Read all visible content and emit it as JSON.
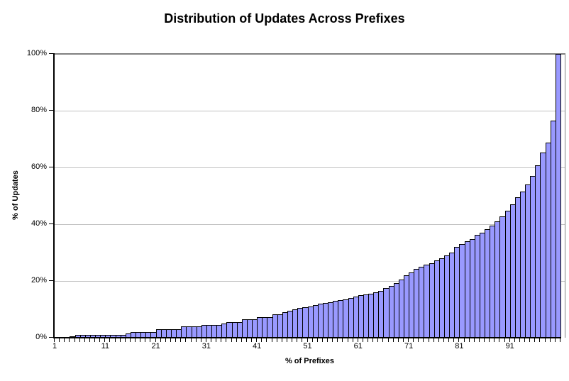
{
  "chart_data": {
    "type": "bar",
    "title": "Distribution of Updates Across Prefixes",
    "xlabel": "% of Prefixes",
    "ylabel": "% of Updates",
    "grid": true,
    "legend": "none",
    "xlim": [
      1,
      100
    ],
    "ylim": [
      0,
      100
    ],
    "x_tick_positions": [
      1,
      11,
      21,
      31,
      41,
      51,
      61,
      71,
      81,
      91
    ],
    "x_tick_labels": [
      "1",
      "11",
      "21",
      "31",
      "41",
      "51",
      "61",
      "71",
      "81",
      "91"
    ],
    "y_ticks": {
      "values": [
        0,
        20,
        40,
        60,
        80,
        100
      ],
      "labels": [
        "0%",
        "20%",
        "40%",
        "60%",
        "80%",
        "100%"
      ]
    },
    "x": [
      1,
      2,
      3,
      4,
      5,
      6,
      7,
      8,
      9,
      10,
      11,
      12,
      13,
      14,
      15,
      16,
      17,
      18,
      19,
      20,
      21,
      22,
      23,
      24,
      25,
      26,
      27,
      28,
      29,
      30,
      31,
      32,
      33,
      34,
      35,
      36,
      37,
      38,
      39,
      40,
      41,
      42,
      43,
      44,
      45,
      46,
      47,
      48,
      49,
      50,
      51,
      52,
      53,
      54,
      55,
      56,
      57,
      58,
      59,
      60,
      61,
      62,
      63,
      64,
      65,
      66,
      67,
      68,
      69,
      70,
      71,
      72,
      73,
      74,
      75,
      76,
      77,
      78,
      79,
      80,
      81,
      82,
      83,
      84,
      85,
      86,
      87,
      88,
      89,
      90,
      91,
      92,
      93,
      94,
      95,
      96,
      97,
      98,
      99,
      100
    ],
    "values": [
      0.05,
      0.1,
      0.1,
      0.15,
      1,
      1,
      1,
      1,
      1,
      1,
      1,
      1,
      1,
      1,
      1.5,
      2,
      2,
      2,
      2,
      2,
      3,
      3,
      3,
      3,
      3,
      4,
      4,
      4,
      4,
      4.5,
      4.5,
      4.5,
      4.5,
      5,
      5.5,
      5.5,
      5.5,
      6.5,
      6.5,
      6.5,
      7.3,
      7.3,
      7.3,
      8.3,
      8.3,
      9,
      9.5,
      10,
      10.4,
      10.8,
      11.1,
      11.5,
      12,
      12.2,
      12.5,
      12.9,
      13.2,
      13.6,
      14,
      14.5,
      15,
      15.2,
      15.6,
      16,
      16.6,
      17.4,
      18.3,
      19.3,
      20.5,
      21.9,
      23,
      24.3,
      25.1,
      25.8,
      26.2,
      27.2,
      28.1,
      28.9,
      30,
      31.9,
      32.9,
      34,
      34.8,
      36.3,
      37.1,
      38.2,
      39.5,
      41,
      42.7,
      44.8,
      46.9,
      49.4,
      51.5,
      54,
      57,
      60.7,
      65.3,
      68.7,
      76.6,
      100
    ],
    "colors": {
      "bar_fill": "#9999FF",
      "bar_border": "#000000",
      "gridline": "#C0C0C0",
      "plot_border": "#808080",
      "axis": "#000000",
      "background": "#FFFFFF",
      "text": "#000000"
    }
  }
}
